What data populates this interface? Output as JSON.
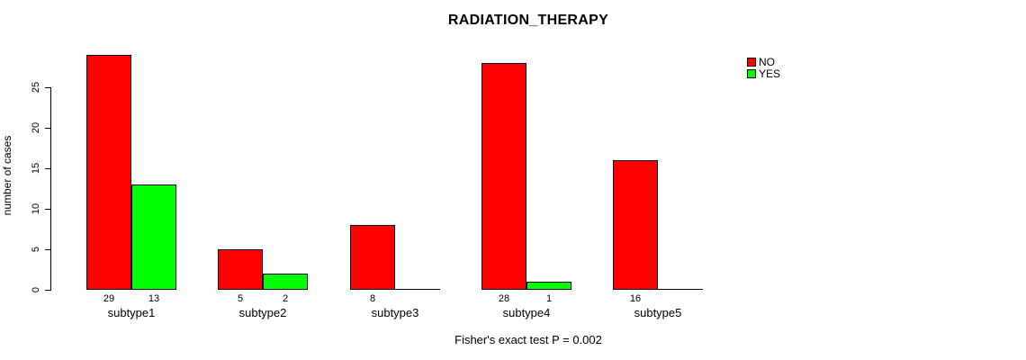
{
  "chart_data": {
    "type": "bar",
    "title": "RADIATION_THERAPY",
    "xlabel": "",
    "ylabel": "number of cases",
    "categories": [
      "subtype1",
      "subtype2",
      "subtype3",
      "subtype4",
      "subtype5"
    ],
    "series": [
      {
        "name": "NO",
        "color": "#ff0000",
        "values": [
          29,
          5,
          8,
          28,
          16
        ]
      },
      {
        "name": "YES",
        "color": "#00ff00",
        "values": [
          13,
          2,
          0,
          1,
          0
        ]
      }
    ],
    "bar_value_labels_shown": true,
    "yticks": [
      0,
      5,
      10,
      15,
      20,
      25
    ],
    "ylim": [
      0,
      25
    ],
    "grid": false,
    "legend_position": "top-right",
    "footer": "Fisher's exact test P = 0.002"
  },
  "colors": {
    "no": "#ff0000",
    "yes": "#00ff00",
    "axis": "#000000",
    "background": "#ffffff"
  }
}
